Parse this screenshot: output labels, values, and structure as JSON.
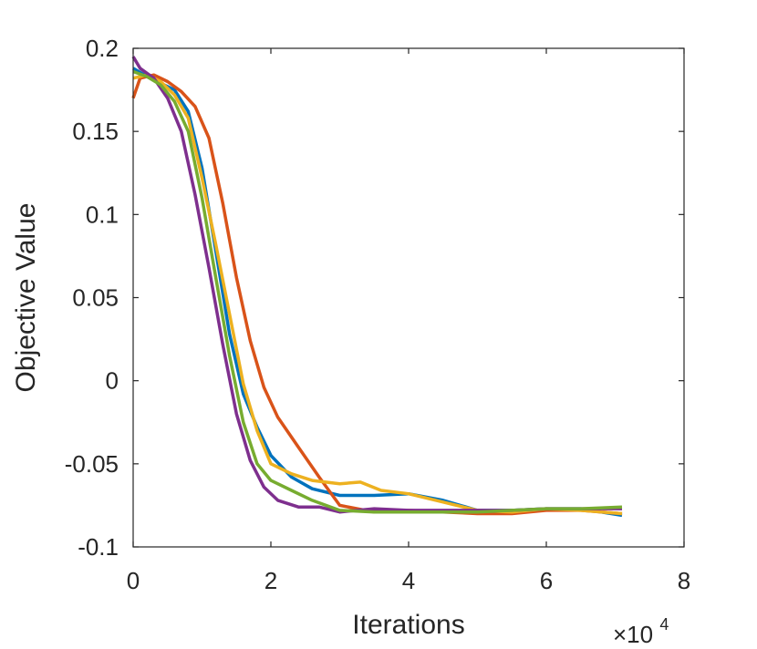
{
  "chart_data": {
    "type": "line",
    "title": "",
    "xlabel": "Iterations",
    "ylabel": "Objective Value",
    "x_exponent_base": "×10",
    "x_exponent_power": "4",
    "xlim": [
      0,
      8
    ],
    "ylim": [
      -0.1,
      0.2
    ],
    "x_ticks": [
      0,
      2,
      4,
      6,
      8
    ],
    "x_tick_labels": [
      "0",
      "2",
      "4",
      "6",
      "8"
    ],
    "y_ticks": [
      -0.1,
      -0.05,
      0,
      0.05,
      0.1,
      0.15,
      0.2
    ],
    "y_tick_labels": [
      "-0.1",
      "-0.05",
      "0",
      "0.05",
      "0.1",
      "0.15",
      "0.2"
    ],
    "grid": false,
    "legend": "none",
    "series": [
      {
        "color": "#0072BD",
        "x": [
          0,
          0.2,
          0.4,
          0.6,
          0.8,
          1.0,
          1.2,
          1.4,
          1.6,
          1.8,
          2.0,
          2.3,
          2.6,
          3.0,
          3.5,
          4.0,
          4.5,
          5.0,
          5.5,
          6.0,
          6.5,
          7.1
        ],
        "y": [
          0.188,
          0.183,
          0.179,
          0.175,
          0.162,
          0.128,
          0.078,
          0.028,
          -0.008,
          -0.028,
          -0.045,
          -0.058,
          -0.065,
          -0.069,
          -0.069,
          -0.068,
          -0.072,
          -0.078,
          -0.078,
          -0.077,
          -0.077,
          -0.081
        ]
      },
      {
        "color": "#D95319",
        "x": [
          0,
          0.1,
          0.3,
          0.5,
          0.7,
          0.9,
          1.1,
          1.3,
          1.5,
          1.7,
          1.9,
          2.1,
          2.4,
          2.7,
          3.0,
          3.5,
          4.0,
          4.5,
          5.0,
          5.5,
          6.0,
          6.5,
          7.1
        ],
        "y": [
          0.17,
          0.182,
          0.184,
          0.18,
          0.174,
          0.165,
          0.146,
          0.107,
          0.062,
          0.024,
          -0.004,
          -0.022,
          -0.04,
          -0.058,
          -0.075,
          -0.079,
          -0.078,
          -0.079,
          -0.08,
          -0.08,
          -0.078,
          -0.078,
          -0.08
        ]
      },
      {
        "color": "#EDB120",
        "x": [
          0,
          0.2,
          0.4,
          0.6,
          0.8,
          1.0,
          1.2,
          1.4,
          1.6,
          1.8,
          2.0,
          2.3,
          2.6,
          3.0,
          3.3,
          3.6,
          4.0,
          4.5,
          5.0,
          5.5,
          6.0,
          6.5,
          7.1
        ],
        "y": [
          0.182,
          0.184,
          0.18,
          0.172,
          0.158,
          0.122,
          0.082,
          0.04,
          -0.002,
          -0.03,
          -0.05,
          -0.056,
          -0.06,
          -0.062,
          -0.061,
          -0.066,
          -0.068,
          -0.073,
          -0.078,
          -0.079,
          -0.077,
          -0.078,
          -0.08
        ]
      },
      {
        "color": "#7E2F8E",
        "x": [
          0,
          0.1,
          0.3,
          0.5,
          0.7,
          0.9,
          1.1,
          1.3,
          1.5,
          1.7,
          1.9,
          2.1,
          2.4,
          2.7,
          3.0,
          3.5,
          4.0,
          4.5,
          5.0,
          5.5,
          6.0,
          6.5,
          7.1
        ],
        "y": [
          0.195,
          0.188,
          0.182,
          0.17,
          0.15,
          0.112,
          0.068,
          0.022,
          -0.02,
          -0.048,
          -0.064,
          -0.072,
          -0.076,
          -0.076,
          -0.079,
          -0.077,
          -0.078,
          -0.078,
          -0.078,
          -0.078,
          -0.077,
          -0.077,
          -0.077
        ]
      },
      {
        "color": "#77AC30",
        "x": [
          0,
          0.2,
          0.4,
          0.6,
          0.8,
          1.0,
          1.2,
          1.4,
          1.6,
          1.8,
          2.0,
          2.3,
          2.6,
          3.0,
          3.5,
          4.0,
          4.5,
          5.0,
          5.5,
          6.0,
          6.5,
          7.1
        ],
        "y": [
          0.186,
          0.183,
          0.178,
          0.168,
          0.15,
          0.11,
          0.062,
          0.015,
          -0.025,
          -0.05,
          -0.06,
          -0.066,
          -0.072,
          -0.078,
          -0.079,
          -0.079,
          -0.079,
          -0.079,
          -0.078,
          -0.077,
          -0.077,
          -0.076
        ]
      }
    ]
  }
}
